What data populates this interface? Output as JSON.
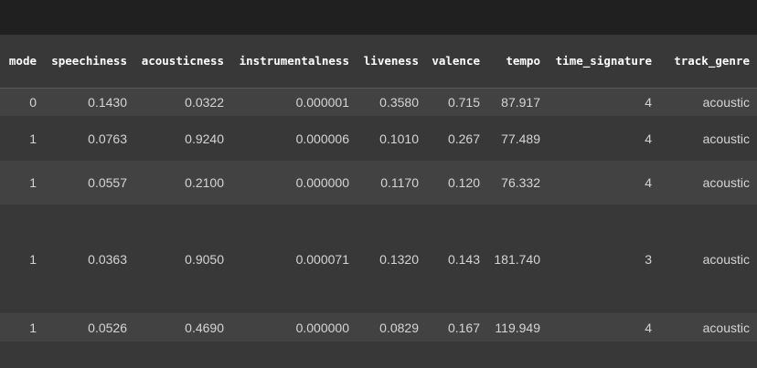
{
  "table": {
    "columns": [
      "mode",
      "speechiness",
      "acousticness",
      "instrumentalness",
      "liveness",
      "valence",
      "tempo",
      "time_signature",
      "track_genre"
    ],
    "rows": [
      [
        "0",
        "0.1430",
        "0.0322",
        "0.000001",
        "0.3580",
        "0.715",
        "87.917",
        "4",
        "acoustic"
      ],
      [
        "1",
        "0.0763",
        "0.9240",
        "0.000006",
        "0.1010",
        "0.267",
        "77.489",
        "4",
        "acoustic"
      ],
      [
        "1",
        "0.0557",
        "0.2100",
        "0.000000",
        "0.1170",
        "0.120",
        "76.332",
        "4",
        "acoustic"
      ],
      [
        "1",
        "0.0363",
        "0.9050",
        "0.000071",
        "0.1320",
        "0.143",
        "181.740",
        "3",
        "acoustic"
      ],
      [
        "1",
        "0.0526",
        "0.4690",
        "0.000000",
        "0.0829",
        "0.167",
        "119.949",
        "4",
        "acoustic"
      ]
    ]
  },
  "colors": {
    "topbar": "#202020",
    "background": "#383838",
    "row_stripe": "#424242",
    "header_text": "#ffffff",
    "cell_text": "#d5d5d5"
  }
}
